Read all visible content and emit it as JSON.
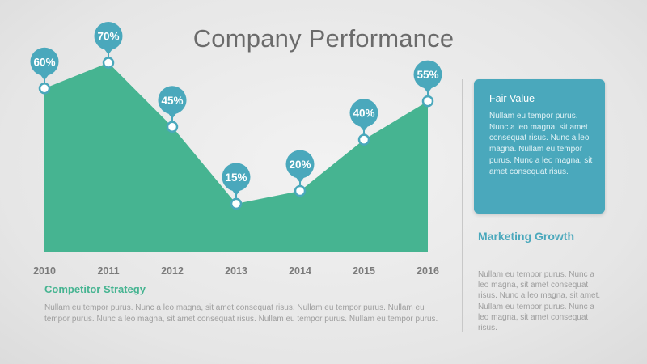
{
  "title": "Company Performance",
  "chart_data": {
    "type": "area",
    "title": "Company Performance",
    "categories": [
      "2010",
      "2011",
      "2012",
      "2013",
      "2014",
      "2015",
      "2016"
    ],
    "values": [
      60,
      70,
      45,
      15,
      20,
      40,
      55
    ],
    "labels": [
      "60%",
      "70%",
      "45%",
      "15%",
      "20%",
      "40%",
      "55%"
    ],
    "unit": "%",
    "ylim": [
      -15,
      85
    ],
    "grid": false,
    "legend": "none"
  },
  "colors": {
    "area": "#46b491",
    "marker": "#4aa8bc",
    "box": "#4aa8bc",
    "heading_green": "#46b491",
    "heading_blue": "#4aa8bc",
    "text_gray": "#9e9e9e"
  },
  "fair_value": {
    "title": "Fair Value",
    "body": "Nullam eu tempor purus. Nunc a leo magna, sit amet consequat risus. Nunc a leo magna. Nullam eu tempor purus. Nunc a leo magna, sit amet consequat risus."
  },
  "marketing": {
    "title": "Marketing Growth",
    "body": "Nullam eu tempor purus. Nunc a leo magna, sit amet consequat risus. Nunc a leo magna, sit amet. Nullam eu tempor purus. Nunc a leo magna, sit amet consequat risus."
  },
  "competitor": {
    "title": "Competitor Strategy",
    "body": "Nullam eu tempor purus. Nunc a leo magna, sit amet consequat risus. Nullam eu tempor purus. Nullam eu tempor purus. Nunc a leo magna, sit amet consequat risus. Nullam eu tempor purus. Nullam eu tempor purus."
  }
}
